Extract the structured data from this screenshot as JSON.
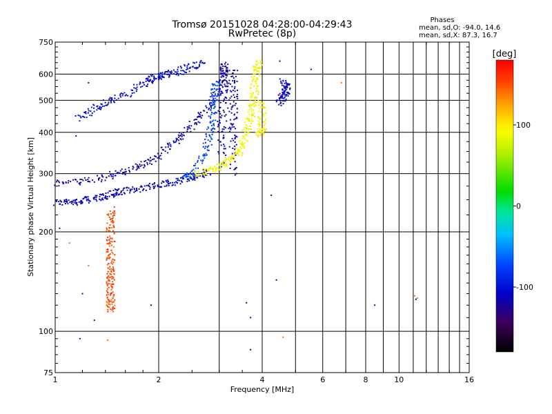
{
  "chart_data": {
    "type": "scatter",
    "title": "Tromsø 20151028 04:28:00-04:29:43",
    "subtitle": "RwPretec (8p)",
    "xlabel": "Frequency [MHz]",
    "ylabel": "Stationary phase Virtual Height [km]",
    "x_scale": "log",
    "y_scale": "log",
    "xlim": [
      1,
      16
    ],
    "ylim": [
      75,
      750
    ],
    "x_ticks": [
      1,
      2,
      4,
      6,
      8,
      10,
      16
    ],
    "x_tick_labels": [
      "1",
      "2",
      "4",
      "6",
      "8",
      "10",
      "16"
    ],
    "x_grid": [
      1,
      2,
      3,
      4,
      5,
      6,
      7,
      8,
      9,
      10,
      11,
      12,
      13,
      14,
      15,
      16
    ],
    "y_ticks": [
      75,
      100,
      200,
      300,
      400,
      500,
      600,
      750
    ],
    "y_tick_labels": [
      "75",
      "100",
      "200",
      "300",
      "400",
      "500",
      "600",
      "750"
    ],
    "y_grid": [
      100,
      200,
      300,
      400,
      500,
      600
    ],
    "grid": true,
    "stats": {
      "heading": "Phases",
      "line_o": "mean, sd,O: -94.0, 14.6",
      "line_x": "mean, sd,X:  87.3, 16.7"
    },
    "colorbar": {
      "label": "[deg]",
      "range": [
        -180,
        180
      ],
      "ticks": [
        100,
        0,
        -100
      ],
      "tick_labels": [
        "100",
        "0",
        "-100"
      ]
    },
    "traces": [
      {
        "id": "o-lower",
        "phase_deg": -110,
        "points": [
          [
            1.0,
            245
          ],
          [
            1.1,
            246
          ],
          [
            1.2,
            248
          ],
          [
            1.3,
            252
          ],
          [
            1.4,
            256
          ],
          [
            1.5,
            262
          ],
          [
            1.6,
            266
          ],
          [
            1.8,
            272
          ],
          [
            2.0,
            277
          ],
          [
            2.2,
            283
          ],
          [
            2.4,
            289
          ],
          [
            2.6,
            295
          ],
          [
            2.8,
            303
          ]
        ]
      },
      {
        "id": "o-upper-band",
        "phase_deg": -115,
        "points": [
          [
            1.0,
            280
          ],
          [
            1.2,
            285
          ],
          [
            1.4,
            293
          ],
          [
            1.6,
            305
          ],
          [
            1.8,
            320
          ],
          [
            2.0,
            340
          ],
          [
            2.2,
            370
          ],
          [
            2.4,
            400
          ],
          [
            2.6,
            440
          ],
          [
            2.8,
            480
          ],
          [
            3.0,
            540
          ],
          [
            3.1,
            600
          ],
          [
            3.1,
            640
          ]
        ]
      },
      {
        "id": "o-oblique-arc",
        "phase_deg": -105,
        "points": [
          [
            1.15,
            440
          ],
          [
            1.3,
            470
          ],
          [
            1.4,
            490
          ],
          [
            1.6,
            520
          ],
          [
            1.8,
            560
          ],
          [
            1.9,
            580
          ],
          [
            2.0,
            590
          ],
          [
            2.1,
            600
          ],
          [
            2.3,
            610
          ],
          [
            2.5,
            635
          ],
          [
            2.7,
            645
          ]
        ]
      },
      {
        "id": "o-vertical",
        "phase_deg": -115,
        "points": [
          [
            3.05,
            320
          ],
          [
            3.05,
            400
          ],
          [
            3.05,
            480
          ],
          [
            3.1,
            560
          ],
          [
            3.1,
            640
          ],
          [
            3.3,
            300
          ],
          [
            3.3,
            380
          ],
          [
            3.3,
            460
          ],
          [
            3.3,
            540
          ],
          [
            3.3,
            620
          ]
        ]
      },
      {
        "id": "o-cyan-transition",
        "phase_deg": -75,
        "points": [
          [
            2.35,
            290
          ],
          [
            2.5,
            300
          ],
          [
            2.7,
            340
          ],
          [
            2.8,
            380
          ],
          [
            2.85,
            420
          ],
          [
            2.9,
            470
          ],
          [
            2.9,
            520
          ],
          [
            2.95,
            570
          ]
        ]
      },
      {
        "id": "x-trace",
        "phase_deg": 90,
        "points": [
          [
            2.55,
            298
          ],
          [
            2.8,
            305
          ],
          [
            3.0,
            315
          ],
          [
            3.2,
            330
          ],
          [
            3.4,
            345
          ],
          [
            3.5,
            370
          ],
          [
            3.6,
            400
          ],
          [
            3.7,
            440
          ],
          [
            3.75,
            480
          ],
          [
            3.8,
            520
          ],
          [
            3.8,
            570
          ],
          [
            3.85,
            620
          ],
          [
            3.9,
            650
          ]
        ]
      },
      {
        "id": "x-right",
        "phase_deg": 95,
        "points": [
          [
            3.9,
            390
          ],
          [
            4.0,
            405
          ],
          [
            4.0,
            450
          ],
          [
            4.0,
            500
          ]
        ]
      },
      {
        "id": "o-far-right",
        "phase_deg": -110,
        "points": [
          [
            4.5,
            490
          ],
          [
            4.6,
            510
          ],
          [
            4.7,
            530
          ],
          [
            4.7,
            550
          ],
          [
            4.6,
            570
          ]
        ]
      },
      {
        "id": "x-vertical-column",
        "phase_deg": 150,
        "points": [
          [
            1.45,
            232
          ],
          [
            1.45,
            215
          ],
          [
            1.45,
            196
          ],
          [
            1.45,
            178
          ],
          [
            1.45,
            162
          ],
          [
            1.45,
            150
          ],
          [
            1.45,
            140
          ],
          [
            1.45,
            130
          ],
          [
            1.45,
            122
          ],
          [
            1.45,
            115
          ]
        ]
      },
      {
        "id": "sparse-noise",
        "phase_deg": -120,
        "points": [
          [
            1.03,
            205
          ],
          [
            1.18,
            95
          ],
          [
            1.3,
            108
          ],
          [
            1.2,
            130
          ],
          [
            1.9,
            120
          ],
          [
            3.6,
            122
          ],
          [
            3.7,
            110
          ],
          [
            3.7,
            88
          ],
          [
            4.4,
            143
          ],
          [
            4.5,
            657
          ],
          [
            5.55,
            620
          ],
          [
            8.5,
            120
          ],
          [
            11.2,
            125
          ],
          [
            1.15,
            390
          ],
          [
            1.25,
            565
          ],
          [
            4.25,
            258
          ]
        ]
      },
      {
        "id": "sparse-x",
        "phase_deg": 140,
        "points": [
          [
            1.1,
            185
          ],
          [
            1.42,
            94
          ],
          [
            1.25,
            158
          ],
          [
            4.6,
            96
          ],
          [
            6.8,
            565
          ],
          [
            11.1,
            128
          ],
          [
            11.3,
            126
          ],
          [
            1.3,
            500
          ],
          [
            4.5,
            520
          ]
        ]
      }
    ]
  }
}
